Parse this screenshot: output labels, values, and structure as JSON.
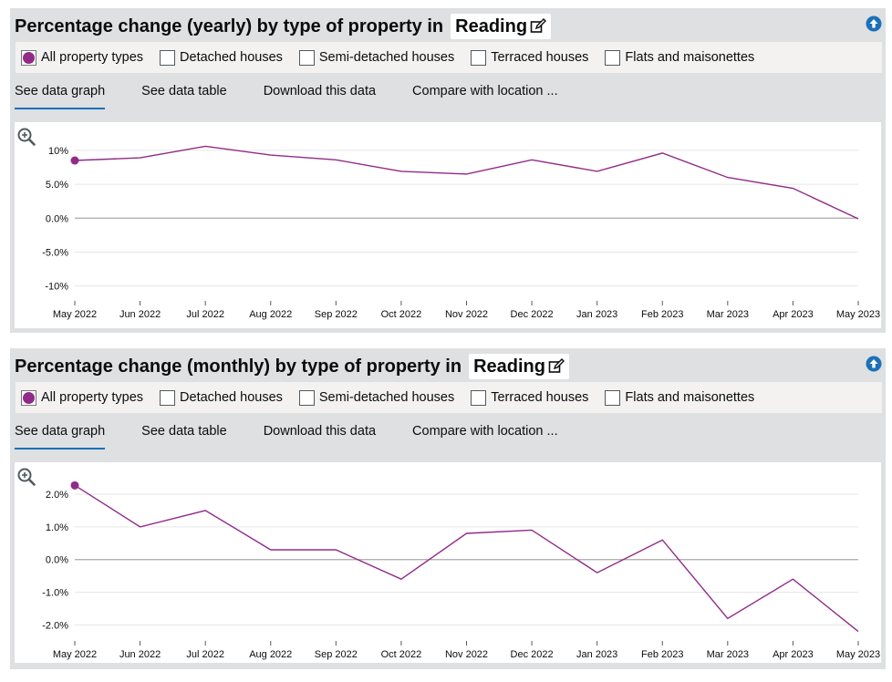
{
  "colors": {
    "series": "#912b88",
    "accent": "#1d70b8",
    "panel_bg": "#dee0e2"
  },
  "panels": [
    {
      "title": "Percentage change (yearly) by type of property in",
      "location": "Reading",
      "icons": {
        "edit": "edit-icon",
        "back_to_top": "arrow-up-circle-icon",
        "zoom": "zoom-in-icon"
      },
      "filters": [
        "All property types",
        "Detached houses",
        "Semi-detached houses",
        "Terraced houses",
        "Flats and maisonettes"
      ],
      "selected_filter": "All property types",
      "tabs": [
        "See data graph",
        "See data table",
        "Download this data",
        "Compare with location ..."
      ],
      "active_tab": "See data graph"
    },
    {
      "title": "Percentage change (monthly) by type of property in",
      "location": "Reading",
      "icons": {
        "edit": "edit-icon",
        "back_to_top": "arrow-up-circle-icon",
        "zoom": "zoom-in-icon"
      },
      "filters": [
        "All property types",
        "Detached houses",
        "Semi-detached houses",
        "Terraced houses",
        "Flats and maisonettes"
      ],
      "selected_filter": "All property types",
      "tabs": [
        "See data graph",
        "See data table",
        "Download this data",
        "Compare with location ..."
      ],
      "active_tab": "See data graph"
    }
  ],
  "chart_data": [
    {
      "type": "line",
      "x": [
        "May 2022",
        "Jun 2022",
        "Jul 2022",
        "Aug 2022",
        "Sep 2022",
        "Oct 2022",
        "Nov 2022",
        "Dec 2022",
        "Jan 2023",
        "Feb 2023",
        "Mar 2023",
        "Apr 2023",
        "May 2023"
      ],
      "series": [
        {
          "values": [
            8.5,
            8.9,
            10.6,
            9.3,
            8.6,
            6.9,
            6.5,
            8.6,
            6.9,
            9.6,
            6.0,
            4.4,
            -0.1
          ]
        }
      ],
      "yticks": [
        "10%",
        "5.0%",
        "0.0%",
        "-5.0%",
        "-10%"
      ],
      "ytick_values": [
        10,
        5,
        0,
        -5,
        -10
      ],
      "ylim": [
        -12.2,
        12
      ],
      "grid": true,
      "marker_on_first_point": true
    },
    {
      "type": "line",
      "x": [
        "May 2022",
        "Jun 2022",
        "Jul 2022",
        "Aug 2022",
        "Sep 2022",
        "Oct 2022",
        "Nov 2022",
        "Dec 2022",
        "Jan 2023",
        "Feb 2023",
        "Mar 2023",
        "Apr 2023",
        "May 2023"
      ],
      "series": [
        {
          "values": [
            2.27,
            1.0,
            1.5,
            0.3,
            0.3,
            -0.6,
            0.8,
            0.9,
            -0.4,
            0.6,
            -1.8,
            -0.6,
            -2.2
          ]
        }
      ],
      "yticks": [
        "2.0%",
        "1.0%",
        "0.0%",
        "-1.0%",
        "-2.0%"
      ],
      "ytick_values": [
        2,
        1,
        0,
        -1,
        -2
      ],
      "ylim": [
        -2.49,
        2.53
      ],
      "grid": true,
      "marker_on_first_point": true
    }
  ]
}
